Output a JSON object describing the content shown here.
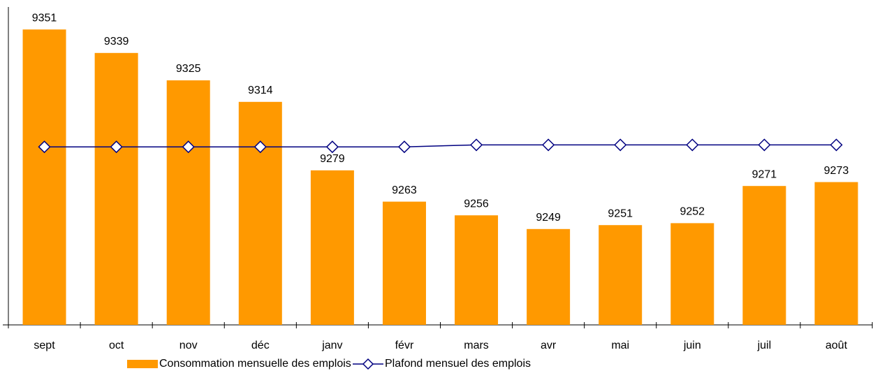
{
  "chart_data": {
    "type": "bar_line",
    "categories": [
      "sept",
      "oct",
      "nov",
      "déc",
      "janv",
      "févr",
      "mars",
      "avr",
      "mai",
      "juin",
      "juil",
      "août"
    ],
    "series": [
      {
        "name": "Consommation mensuelle des emplois",
        "type": "bar",
        "color": "#ff9900",
        "values": [
          9351,
          9339,
          9325,
          9314,
          9279,
          9263,
          9256,
          9249,
          9251,
          9252,
          9271,
          9273
        ]
      },
      {
        "name": "Plafond mensuel des emplois",
        "type": "line",
        "color": "#000080",
        "values": [
          9291,
          9291,
          9291,
          9291,
          9291,
          9291,
          9292,
          9292,
          9292,
          9292,
          9292,
          9292
        ]
      }
    ],
    "ylim": [
      9200,
      9360
    ]
  }
}
